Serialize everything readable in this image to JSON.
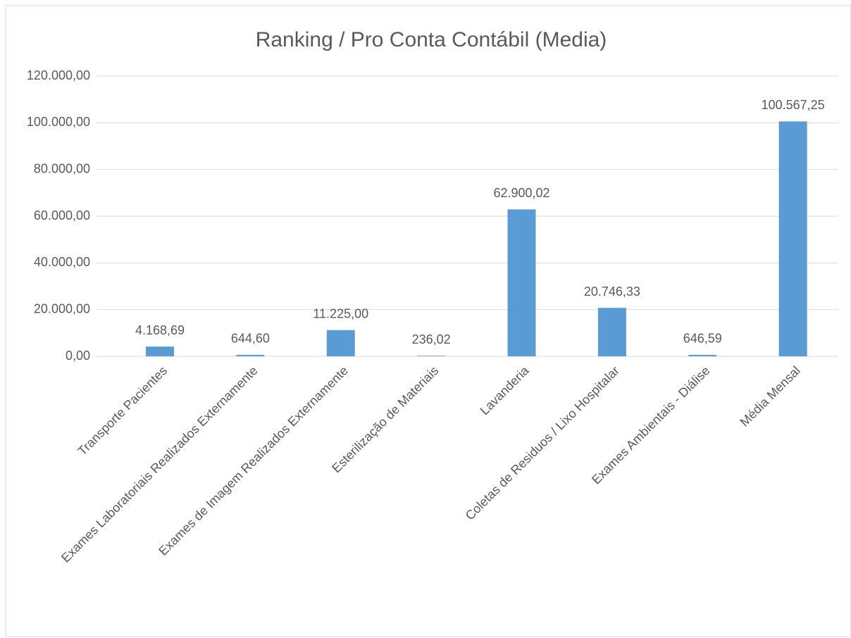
{
  "chart_data": {
    "type": "bar",
    "title": "Ranking / Pro Conta Contábil (Media)",
    "categories": [
      "Transporte Pacientes",
      "Exames Laboratoriais Realizados Externamente",
      "Exames de Imagem Realizados Externamente",
      "Esterilização de Materiais",
      "Lavanderia",
      "Coletas de Residuos / Lixo Hospitalar",
      "Exames Ambientais - Diálise",
      "Média Mensal"
    ],
    "values": [
      4168.69,
      644.6,
      11225.0,
      236.02,
      62900.02,
      20746.33,
      646.59,
      100567.25
    ],
    "value_labels": [
      "4.168,69",
      "644,60",
      "11.225,00",
      "236,02",
      "62.900,02",
      "20.746,33",
      "646,59",
      "100.567,25"
    ],
    "color": "#5b9bd5",
    "ylim": [
      0,
      120000
    ],
    "yticks": [
      {
        "value": 0,
        "label": "0,00"
      },
      {
        "value": 20000,
        "label": "20.000,00"
      },
      {
        "value": 40000,
        "label": "40.000,00"
      },
      {
        "value": 60000,
        "label": "60.000,00"
      },
      {
        "value": 80000,
        "label": "80.000,00"
      },
      {
        "value": 100000,
        "label": "100.000,00"
      },
      {
        "value": 120000,
        "label": "120.000,00"
      }
    ],
    "grid": true
  }
}
